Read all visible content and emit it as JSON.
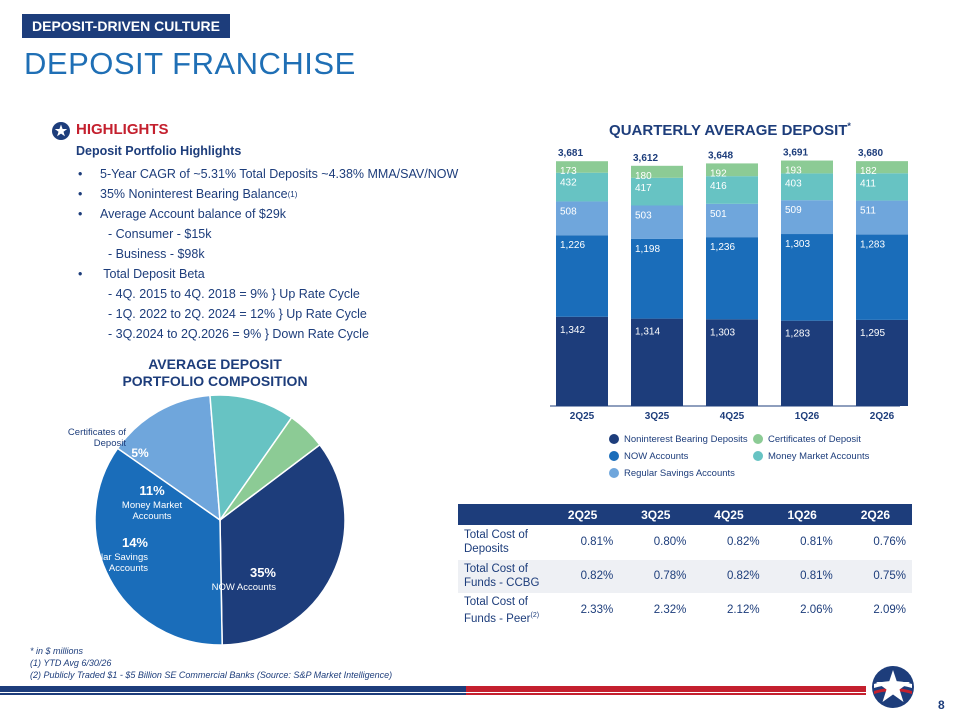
{
  "header": {
    "section_tag": "DEPOSIT-DRIVEN CULTURE",
    "page_title": "DEPOSIT FRANCHISE"
  },
  "highlights": {
    "title": "HIGHLIGHTS",
    "subtitle": "Deposit Portfolio Highlights",
    "lines": [
      {
        "bullet": "•",
        "text": "5-Year CAGR of ~5.31% Total Deposits ~4.38% MMA/SAV/NOW",
        "sup": ""
      },
      {
        "bullet": "•",
        "text": "35% Noninterest Bearing Balance",
        "sup": "(1)"
      },
      {
        "bullet": "•",
        "text": "Average Account balance of $29k",
        "sup": ""
      },
      {
        "bullet": "",
        "text": "- Consumer - $15k",
        "sup": ""
      },
      {
        "bullet": "",
        "text": "- Business - $98k",
        "sup": ""
      },
      {
        "bullet": "•",
        "text": " Total Deposit Beta",
        "sup": ""
      },
      {
        "bullet": "",
        "text": "- 4Q. 2015 to 4Q. 2018 = 9% } Up Rate Cycle",
        "sup": ""
      },
      {
        "bullet": "",
        "text": "- 1Q. 2022 to 2Q. 2024 = 12% } Up Rate Cycle",
        "sup": ""
      },
      {
        "bullet": "",
        "text": "- 3Q.2024 to 2Q.2026 = 9% } Down Rate Cycle",
        "sup": ""
      }
    ]
  },
  "pie": {
    "title_line1": "AVERAGE DEPOSIT",
    "title_line2": "PORTFOLIO COMPOSITION"
  },
  "bar": {
    "title": "QUARTERLY AVERAGE DEPOSIT",
    "title_sup": "*"
  },
  "colors": {
    "navy": "#1d3d7b",
    "now": "#1a6dba",
    "savings": "#6fa6dc",
    "mma": "#67c3c3",
    "cd": "#8ccb95",
    "red": "#c4202e"
  },
  "chart_data": [
    {
      "type": "pie",
      "title": "AVERAGE DEPOSIT PORTFOLIO COMPOSITION",
      "slices": [
        {
          "pct_label": "35%",
          "name": "Noninterest Bearing Deposits",
          "label_lines": [
            "Noninterest Bearing",
            "Deposits"
          ],
          "value": 35,
          "color": "#1d3d7b"
        },
        {
          "pct_label": "35%",
          "name": "NOW Accounts",
          "label_lines": [
            "NOW Accounts"
          ],
          "value": 35,
          "color": "#1a6dba"
        },
        {
          "pct_label": "14%",
          "name": "Regular Savings Accounts",
          "label_lines": [
            "Regular Savings",
            "Accounts"
          ],
          "value": 14,
          "color": "#6fa6dc"
        },
        {
          "pct_label": "11%",
          "name": "Money Market Accounts",
          "label_lines": [
            "Money Market",
            "Accounts"
          ],
          "value": 11,
          "color": "#67c3c3"
        },
        {
          "pct_label": "5%",
          "name": "Certificates of Deposit",
          "label_lines": [
            "Certificates of",
            "Deposit"
          ],
          "value": 5,
          "color": "#8ccb95"
        }
      ]
    },
    {
      "type": "bar",
      "stacked": true,
      "title": "QUARTERLY AVERAGE DEPOSIT*",
      "categories": [
        "2Q25",
        "3Q25",
        "4Q25",
        "1Q26",
        "2Q26"
      ],
      "totals": [
        "3,681",
        "3,612",
        "3,648",
        "3,691",
        "3,680"
      ],
      "series": [
        {
          "name": "Noninterest Bearing Deposits",
          "values": [
            1342,
            1314,
            1303,
            1283,
            1295
          ],
          "labels": [
            "1,342",
            "1,314",
            "1,303",
            "1,283",
            "1,295"
          ],
          "color": "#1d3d7b"
        },
        {
          "name": "NOW Accounts",
          "values": [
            1226,
            1198,
            1236,
            1303,
            1283
          ],
          "labels": [
            "1,226",
            "1,198",
            "1,236",
            "1,303",
            "1,283"
          ],
          "color": "#1a6dba"
        },
        {
          "name": "Regular Savings Accounts",
          "values": [
            508,
            503,
            501,
            509,
            511
          ],
          "labels": [
            "508",
            "503",
            "501",
            "509",
            "511"
          ],
          "color": "#6fa6dc"
        },
        {
          "name": "Money Market Accounts",
          "values": [
            432,
            417,
            416,
            403,
            411
          ],
          "labels": [
            "432",
            "417",
            "416",
            "403",
            "411"
          ],
          "color": "#67c3c3"
        },
        {
          "name": "Certificates of Deposit",
          "values": [
            173,
            180,
            192,
            193,
            182
          ],
          "labels": [
            "173",
            "180",
            "192",
            "193",
            "182"
          ],
          "color": "#8ccb95"
        }
      ],
      "legend": [
        {
          "name": "Noninterest Bearing Deposits",
          "color": "#1d3d7b"
        },
        {
          "name": "Certificates of Deposit",
          "color": "#8ccb95"
        },
        {
          "name": "NOW Accounts",
          "color": "#1a6dba"
        },
        {
          "name": "Money Market Accounts",
          "color": "#67c3c3"
        },
        {
          "name": "Regular Savings Accounts",
          "color": "#6fa6dc"
        }
      ],
      "legend_placement": "bottom"
    },
    {
      "type": "table",
      "columns": [
        "",
        "2Q25",
        "3Q25",
        "4Q25",
        "1Q26",
        "2Q26"
      ],
      "rows": [
        {
          "label_lines": [
            "Total Cost of",
            "Deposits"
          ],
          "sup": "",
          "values": [
            "0.81%",
            "0.80%",
            "0.82%",
            "0.81%",
            "0.76%"
          ]
        },
        {
          "label_lines": [
            "Total Cost of",
            "Funds - CCBG"
          ],
          "sup": "",
          "values": [
            "0.82%",
            "0.78%",
            "0.82%",
            "0.81%",
            "0.75%"
          ]
        },
        {
          "label_lines": [
            "Total Cost of",
            "Funds - Peer"
          ],
          "sup": "(2)",
          "values": [
            "2.33%",
            "2.32%",
            "2.12%",
            "2.06%",
            "2.09%"
          ]
        }
      ]
    }
  ],
  "footnotes": [
    "* in $ millions",
    "(1) YTD Avg 6/30/26",
    "(2) Publicly Traded $1 - $5 Billion SE Commercial Banks (Source: S&P Market Intelligence)"
  ],
  "footer": {
    "page_number": "8",
    "logo_icon": "star-logo-icon"
  }
}
